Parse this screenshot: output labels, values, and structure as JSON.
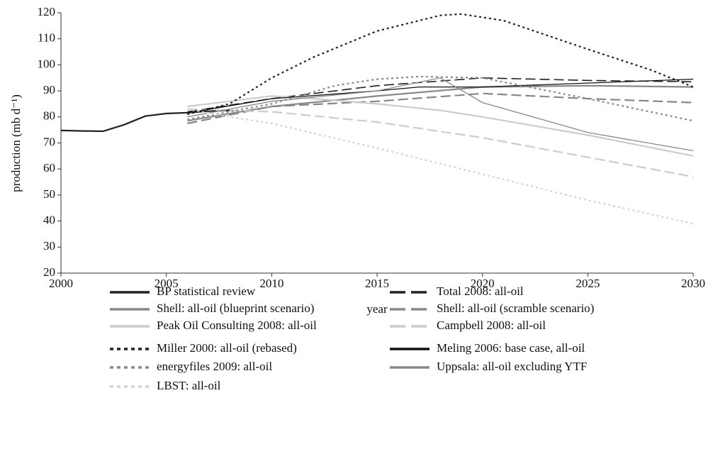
{
  "chart_data": {
    "type": "line",
    "xlabel": "year",
    "ylabel": "production (mb d⁻¹)",
    "xlim": [
      2000,
      2030
    ],
    "ylim": [
      20,
      120
    ],
    "xticks": [
      2000,
      2005,
      2010,
      2015,
      2020,
      2025,
      2030
    ],
    "yticks": [
      20,
      30,
      40,
      50,
      60,
      70,
      80,
      90,
      100,
      110,
      120
    ],
    "series": [
      {
        "name": "BP statistical review",
        "color": "#222222",
        "dash": "solid",
        "width": 2.2,
        "x": [
          2000,
          2001,
          2002,
          2003,
          2004,
          2005,
          2006,
          2007,
          2008
        ],
        "values": [
          74.8,
          74.6,
          74.5,
          77,
          80.3,
          81.3,
          81.6,
          82.2,
          82.5
        ]
      },
      {
        "name": "Total 2008: all-oil",
        "color": "#222222",
        "dash": "dashed",
        "width": 1.6,
        "x": [
          2006,
          2010,
          2015,
          2020,
          2025,
          2030
        ],
        "values": [
          82,
          87,
          92,
          95,
          94,
          93.5
        ]
      },
      {
        "name": "Shell: all-oil (blueprint scenario)",
        "color": "#888888",
        "dash": "solid",
        "width": 2.2,
        "x": [
          2006,
          2010,
          2015,
          2020,
          2025,
          2030
        ],
        "values": [
          78.5,
          84,
          88,
          91.5,
          92,
          91.5
        ]
      },
      {
        "name": "Shell: all-oil (scramble scenario)",
        "color": "#888888",
        "dash": "dashed",
        "width": 2.2,
        "x": [
          2006,
          2010,
          2015,
          2020,
          2025,
          2030
        ],
        "values": [
          77.5,
          84,
          86,
          89,
          87,
          85.5
        ]
      },
      {
        "name": "Peak Oil Consulting 2008: all-oil",
        "color": "#cccccc",
        "dash": "solid",
        "width": 2.2,
        "x": [
          2006,
          2010,
          2012,
          2015,
          2018,
          2020,
          2025,
          2030
        ],
        "values": [
          84,
          88,
          87,
          85,
          82.5,
          80,
          73,
          65
        ]
      },
      {
        "name": "Campbell 2008: all-oil",
        "color": "#cccccc",
        "dash": "dashed",
        "width": 2.2,
        "x": [
          2006,
          2010,
          2015,
          2020,
          2025,
          2030
        ],
        "values": [
          83,
          82,
          78,
          72,
          64.5,
          57
        ]
      },
      {
        "name": "Miller 2000: all-oil (rebased)",
        "color": "#222222",
        "dash": "dotted",
        "width": 2.2,
        "x": [
          2006,
          2008,
          2010,
          2012,
          2015,
          2018,
          2019,
          2021,
          2025,
          2028,
          2030
        ],
        "values": [
          81,
          85,
          95,
          103,
          113,
          119,
          119.5,
          117,
          106,
          98,
          91.5
        ]
      },
      {
        "name": "Meling 2006: base case, all-oil",
        "color": "#111111",
        "dash": "solid",
        "width": 1.3,
        "x": [
          2006,
          2010,
          2015,
          2017,
          2020,
          2025,
          2030
        ],
        "values": [
          81.5,
          87,
          90,
          91.5,
          91.5,
          93,
          94.5
        ]
      },
      {
        "name": "energyfiles 2009: all-oil",
        "color": "#888888",
        "dash": "dotted",
        "width": 2.2,
        "x": [
          2006,
          2010,
          2013,
          2015,
          2017,
          2020,
          2025,
          2030
        ],
        "values": [
          79,
          85,
          92,
          94.5,
          95.5,
          95,
          87,
          78.5
        ]
      },
      {
        "name": "Uppsala: all-oil excluding YTF",
        "color": "#888888",
        "dash": "solid",
        "width": 1.3,
        "x": [
          2006,
          2010,
          2015,
          2018,
          2020,
          2025,
          2030
        ],
        "values": [
          80,
          86,
          90,
          95,
          85.5,
          74,
          67
        ]
      },
      {
        "name": "LBST: all-oil",
        "color": "#d4d4d4",
        "dash": "dotted",
        "width": 2.2,
        "x": [
          2006,
          2008,
          2010,
          2015,
          2020,
          2025,
          2030
        ],
        "values": [
          83,
          80,
          77.5,
          68,
          58,
          48,
          39
        ]
      }
    ]
  }
}
